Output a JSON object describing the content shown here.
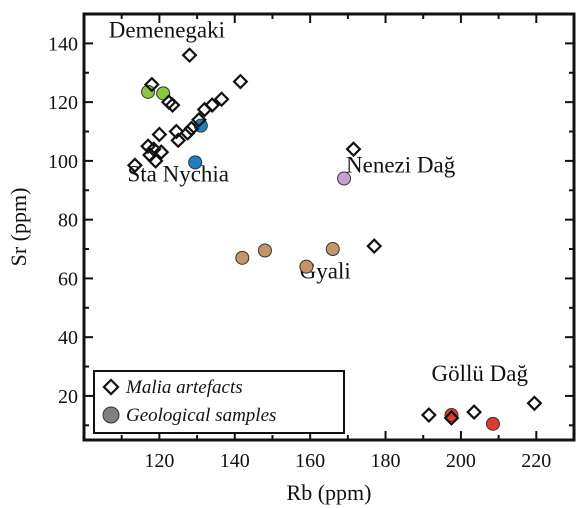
{
  "chart_data": {
    "type": "scatter",
    "title": "",
    "xlabel": "Rb (ppm)",
    "ylabel": "Sr (ppm)",
    "xlim": [
      100,
      230
    ],
    "ylim": [
      5,
      150
    ],
    "x_ticks": [
      120,
      140,
      160,
      180,
      200,
      220
    ],
    "y_ticks": [
      20,
      40,
      60,
      80,
      100,
      120,
      140
    ],
    "grid": false,
    "legend_position": "bottom-left",
    "annotations": [
      {
        "text": "Demenegaki",
        "x": 122,
        "y": 142
      },
      {
        "text": "Sta Nychia",
        "x": 125,
        "y": 93
      },
      {
        "text": "Nenezi Dağ",
        "x": 184,
        "y": 96
      },
      {
        "text": "Gyali",
        "x": 164,
        "y": 60
      },
      {
        "text": "Göllü Dağ",
        "x": 205,
        "y": 25
      }
    ],
    "series": [
      {
        "name": "Malia artefacts",
        "marker": "diamond",
        "color": "#111111",
        "points": [
          [
            128,
            136
          ],
          [
            118,
            126
          ],
          [
            141.5,
            127
          ],
          [
            136.5,
            121
          ],
          [
            134,
            119
          ],
          [
            122.5,
            120
          ],
          [
            123.5,
            119
          ],
          [
            132,
            117.5
          ],
          [
            130.5,
            114
          ],
          [
            128.5,
            111
          ],
          [
            127.5,
            109.5
          ],
          [
            124.5,
            110
          ],
          [
            125,
            107
          ],
          [
            120,
            109
          ],
          [
            117,
            105
          ],
          [
            118.5,
            104
          ],
          [
            117.5,
            102
          ],
          [
            120.5,
            103
          ],
          [
            119,
            100
          ],
          [
            113.5,
            98.5
          ],
          [
            171.5,
            104
          ],
          [
            177,
            71
          ],
          [
            191.5,
            13.5
          ],
          [
            197.5,
            12.5
          ],
          [
            203.5,
            14.5
          ],
          [
            219.5,
            17.5
          ]
        ]
      },
      {
        "name": "Geological samples",
        "marker": "circle",
        "color": "#808080",
        "points": [
          {
            "x": 117,
            "y": 123.5,
            "group": "Demenegaki",
            "color": "#8dc63f"
          },
          {
            "x": 121,
            "y": 123,
            "group": "Demenegaki",
            "color": "#8dc63f"
          },
          {
            "x": 131,
            "y": 112,
            "group": "Sta Nychia",
            "color": "#1f7fc4"
          },
          {
            "x": 129.5,
            "y": 99.5,
            "group": "Sta Nychia",
            "color": "#1f7fc4"
          },
          {
            "x": 169,
            "y": 94,
            "group": "Nenezi Dağ",
            "color": "#c7a0d2"
          },
          {
            "x": 142,
            "y": 67,
            "group": "Gyali",
            "color": "#c59568"
          },
          {
            "x": 148,
            "y": 69.5,
            "group": "Gyali",
            "color": "#c59568"
          },
          {
            "x": 159,
            "y": 64,
            "group": "Gyali",
            "color": "#c59568"
          },
          {
            "x": 166,
            "y": 70,
            "group": "Gyali",
            "color": "#c59568"
          },
          {
            "x": 197.5,
            "y": 13.5,
            "group": "Göllü Dağ",
            "color": "#e03a2f"
          },
          {
            "x": 208.5,
            "y": 10.5,
            "group": "Göllü Dağ",
            "color": "#e03a2f"
          }
        ]
      }
    ]
  }
}
